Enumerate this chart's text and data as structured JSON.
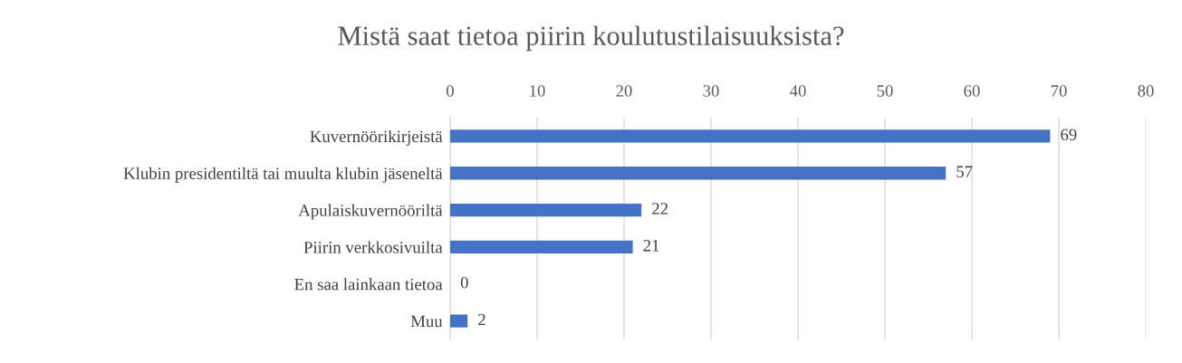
{
  "chart_data": {
    "type": "bar",
    "orientation": "horizontal",
    "title": "Mistä saat tietoa piirin koulutustilaisuuksista?",
    "categories": [
      "Kuvernöörikirjeistä",
      "Klubin presidentiltä tai muulta klubin jäseneltä",
      "Apulaiskuvernööriltä",
      "Piirin verkkosivuilta",
      "En saa lainkaan tietoa",
      "Muu"
    ],
    "values": [
      69,
      57,
      22,
      21,
      0,
      2
    ],
    "color": "#4472c4",
    "xlim": [
      0,
      80
    ],
    "xticks": [
      0,
      10,
      20,
      30,
      40,
      50,
      60,
      70,
      80
    ],
    "grid": "x",
    "data_labels": true
  }
}
